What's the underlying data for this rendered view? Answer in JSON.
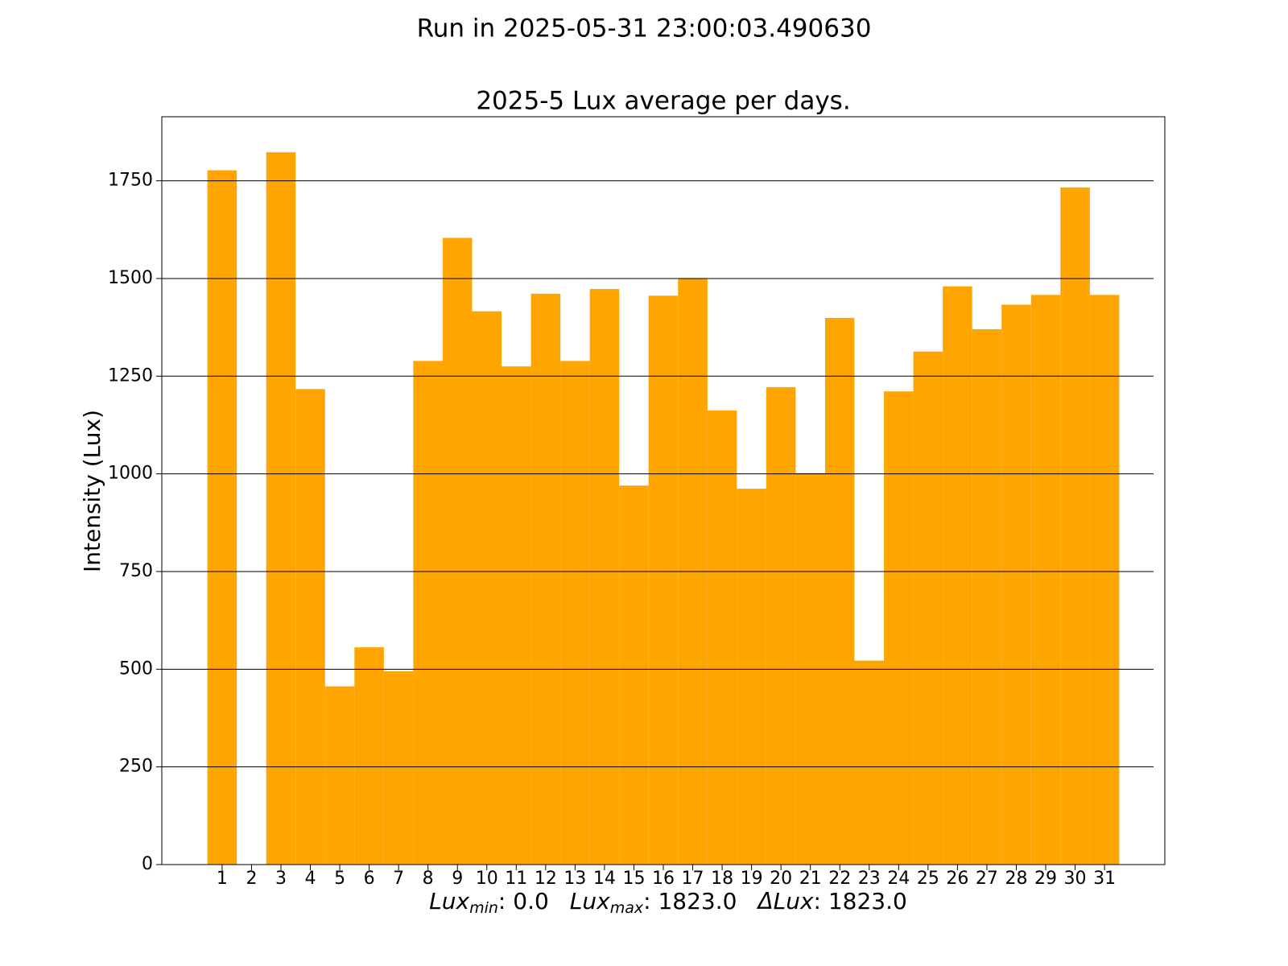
{
  "chart_data": {
    "type": "bar",
    "suptitle": "Run in 2025-05-31 23:00:03.490630",
    "title": "2025-5 Lux average per days.",
    "ylabel": "Intensity (Lux)",
    "xlabel": [
      {
        "math": "Lux",
        "sub": "min",
        "text": ": 0.0"
      },
      {
        "math": "Lux",
        "sub": "max",
        "text": ": 1823.0"
      },
      {
        "math": "ΔLux",
        "text": ": 1823.0"
      }
    ],
    "categories": [
      "1",
      "2",
      "3",
      "4",
      "5",
      "6",
      "7",
      "8",
      "9",
      "10",
      "11",
      "12",
      "13",
      "14",
      "15",
      "16",
      "17",
      "18",
      "19",
      "20",
      "21",
      "22",
      "23",
      "24",
      "25",
      "26",
      "27",
      "28",
      "29",
      "30",
      "31"
    ],
    "values": [
      1777,
      0,
      1823,
      1217,
      456,
      556,
      495,
      1289,
      1604,
      1416,
      1275,
      1461,
      1289,
      1473,
      970,
      1456,
      1501,
      1162,
      962,
      1222,
      1002,
      1399,
      522,
      1211,
      1313,
      1480,
      1370,
      1433,
      1458,
      1733,
      1458
    ],
    "color": "#ffa500",
    "ylim": [
      0,
      1914
    ],
    "yticks": [
      0,
      250,
      500,
      750,
      1000,
      1250,
      1500,
      1750
    ],
    "grid": true
  }
}
